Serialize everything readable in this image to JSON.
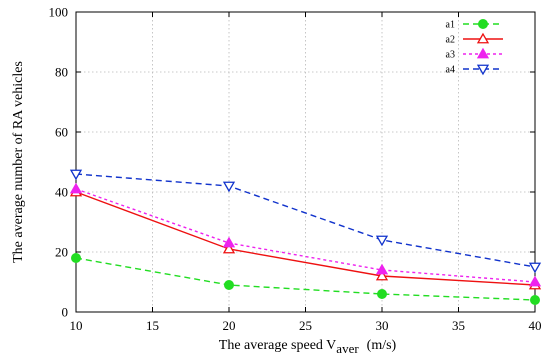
{
  "chart_data": {
    "type": "line",
    "title": "",
    "xlabel": "The average speed V",
    "xlabel_sub": "aver",
    "xlabel_unit": "(m/s)",
    "ylabel": "The average number of RA vehicles",
    "xlim": [
      10,
      40
    ],
    "ylim": [
      0,
      100
    ],
    "x_ticks": [
      10,
      15,
      20,
      25,
      30,
      35,
      40
    ],
    "y_ticks": [
      0,
      20,
      40,
      60,
      80,
      100
    ],
    "x": [
      10,
      20,
      30,
      40
    ],
    "grid": true,
    "legend_position": "top-right",
    "series": [
      {
        "name": "a1",
        "values": [
          18,
          9,
          6,
          4
        ],
        "color": "#22dd22",
        "marker": "circle",
        "dash": "6 4"
      },
      {
        "name": "a2",
        "values": [
          40,
          21,
          12,
          9
        ],
        "color": "#ee1111",
        "marker": "triangle-open",
        "dash": ""
      },
      {
        "name": "a3",
        "values": [
          41,
          23,
          14,
          10
        ],
        "color": "#ee22ee",
        "marker": "triangle",
        "dash": "3 3"
      },
      {
        "name": "a4",
        "values": [
          46,
          42,
          24,
          15
        ],
        "color": "#1133cc",
        "marker": "triangle-down-open",
        "dash": "6 4"
      }
    ]
  }
}
